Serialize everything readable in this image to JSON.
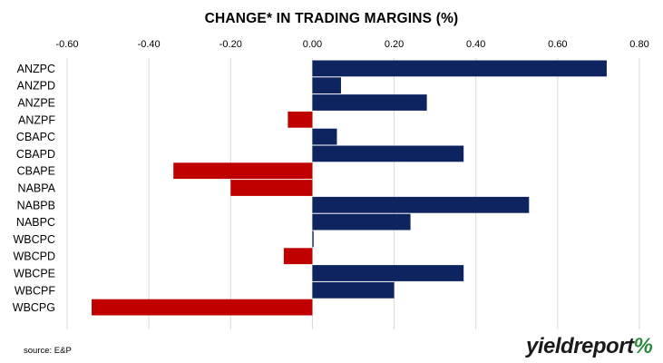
{
  "chart_data": {
    "type": "bar",
    "orientation": "horizontal",
    "title": "CHANGE* IN TRADING MARGINS (%)",
    "categories": [
      "ANZPC",
      "ANZPD",
      "ANZPE",
      "ANZPF",
      "CBAPC",
      "CBAPD",
      "CBAPE",
      "NABPA",
      "NABPB",
      "NABPC",
      "WBCPC",
      "WBCPD",
      "WBCPE",
      "WBCPF",
      "WBCPG"
    ],
    "values": [
      0.72,
      0.07,
      0.28,
      -0.06,
      0.06,
      0.37,
      -0.34,
      -0.2,
      0.53,
      0.24,
      0.003,
      -0.07,
      0.37,
      0.2,
      -0.54
    ],
    "xlim": [
      -0.6,
      0.8
    ],
    "x_ticks": [
      "-0.60",
      "-0.40",
      "-0.20",
      "0.00",
      "0.20",
      "0.40",
      "0.60",
      "0.80"
    ],
    "x_tick_values": [
      -0.6,
      -0.4,
      -0.2,
      0,
      0.2,
      0.4,
      0.6,
      0.8
    ],
    "xlabel": "",
    "ylabel": "",
    "grid": true,
    "positive_color": "#0d2461",
    "negative_color": "#c00000"
  },
  "source": "source: E&P",
  "logo": {
    "text": "yieldreport",
    "symbol": "%"
  }
}
